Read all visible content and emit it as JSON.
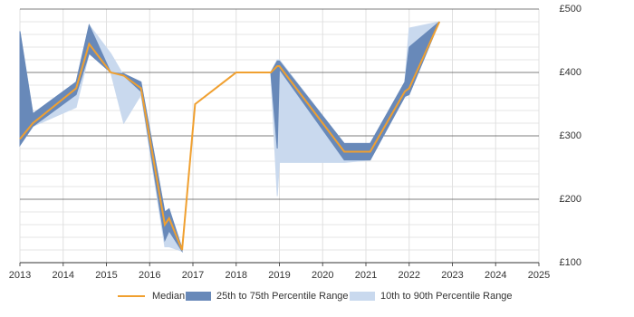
{
  "chart_data": {
    "type": "line",
    "x": [
      2013.0,
      2013.3,
      2014.3,
      2014.6,
      2015.1,
      2015.4,
      2015.8,
      2016.35,
      2016.45,
      2016.75,
      2017.05,
      2018.0,
      2018.8,
      2018.95,
      2019.0,
      2020.5,
      2021.1,
      2021.9,
      2022.0,
      2022.7
    ],
    "series": [
      {
        "name": "Median",
        "color": "#f0a030",
        "values": [
          295,
          320,
          375,
          445,
          400,
          395,
          375,
          160,
          170,
          120,
          350,
          400,
          400,
          410,
          410,
          275,
          275,
          370,
          375,
          480
        ]
      },
      {
        "name": "25th to 75th Percentile Range",
        "color": "#6889b9",
        "lower": [
          285,
          315,
          365,
          430,
          400,
          395,
          370,
          135,
          150,
          118,
          null,
          null,
          400,
          280,
          405,
          262,
          262,
          362,
          365,
          480
        ],
        "upper": [
          465,
          335,
          385,
          475,
          400,
          398,
          385,
          180,
          185,
          122,
          null,
          null,
          400,
          418,
          418,
          288,
          288,
          385,
          440,
          480
        ]
      },
      {
        "name": "10th to 90th Percentile Range",
        "color": "#c9d9ee",
        "lower": [
          285,
          315,
          345,
          430,
          400,
          320,
          365,
          125,
          125,
          118,
          null,
          null,
          400,
          205,
          258,
          258,
          262,
          362,
          370,
          480
        ],
        "upper": [
          465,
          335,
          385,
          475,
          430,
          395,
          385,
          180,
          185,
          122,
          null,
          null,
          400,
          420,
          420,
          288,
          288,
          385,
          470,
          480
        ]
      }
    ],
    "xlim": [
      2013,
      2025
    ],
    "xticks": [
      2013,
      2014,
      2015,
      2016,
      2017,
      2018,
      2019,
      2020,
      2021,
      2022,
      2023,
      2024,
      2025
    ],
    "ylim": [
      100,
      500
    ],
    "yticks": [
      {
        "value": 100,
        "label": "£100"
      },
      {
        "value": 200,
        "label": "£200"
      },
      {
        "value": 300,
        "label": "£300"
      },
      {
        "value": 400,
        "label": "£400"
      },
      {
        "value": 500,
        "label": "£500"
      }
    ],
    "grid": true
  }
}
